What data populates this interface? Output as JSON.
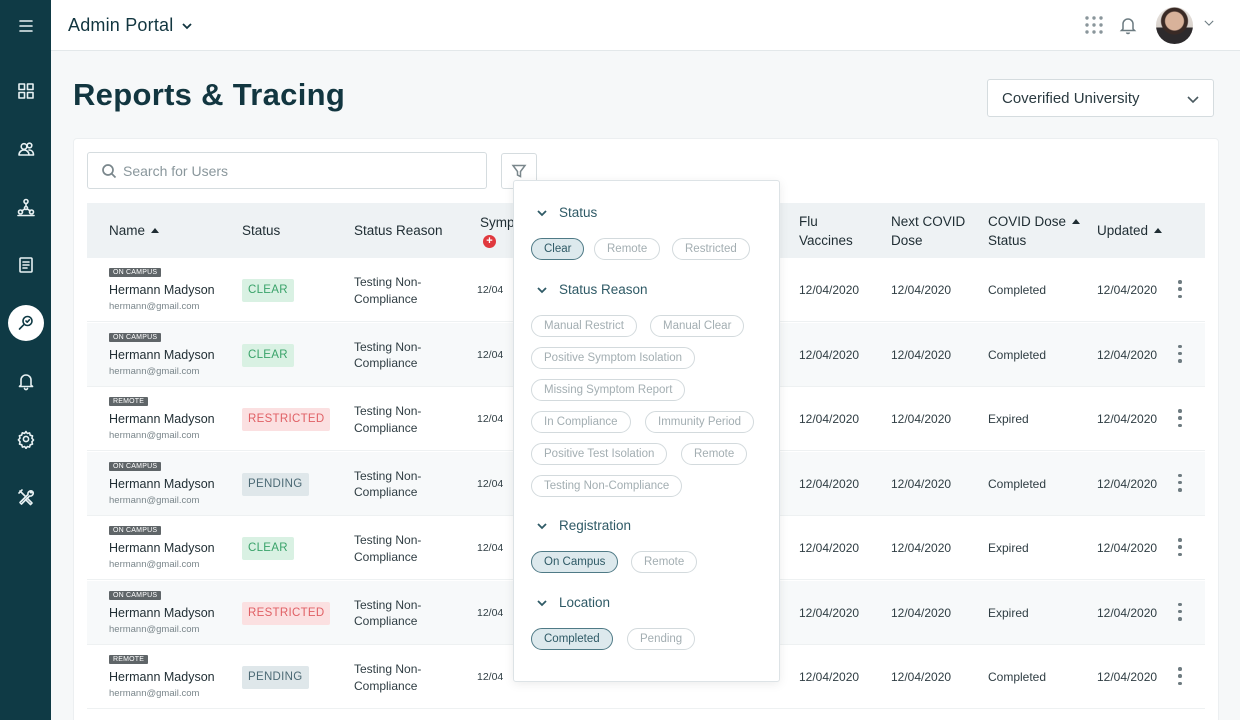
{
  "topbar": {
    "app_title": "Admin Portal"
  },
  "sidebar": {
    "items": [
      {
        "icon": "menu-icon"
      },
      {
        "icon": "dashboard-icon"
      },
      {
        "icon": "users-icon"
      },
      {
        "icon": "network-icon"
      },
      {
        "icon": "reports-icon"
      },
      {
        "icon": "tracing-icon",
        "active": true
      },
      {
        "icon": "bell-icon"
      },
      {
        "icon": "gear-icon"
      },
      {
        "icon": "tools-icon"
      }
    ]
  },
  "page": {
    "title": "Reports & Tracing",
    "org_select": "Coverified University"
  },
  "search": {
    "placeholder": "Search for Users"
  },
  "table": {
    "headers": {
      "name": "Name",
      "status": "Status",
      "status_reason": "Status Reason",
      "symptoms": "Symp",
      "flu": [
        "Flu",
        "Vaccines"
      ],
      "next_covid": [
        "Next COVID",
        "Dose"
      ],
      "covid_status": [
        "COVID Dose",
        "Status"
      ],
      "updated": "Updated"
    },
    "rows": [
      {
        "reg": "ON CAMPUS",
        "name": "Hermann Madyson",
        "email": "hermann@gmail.com",
        "status": "CLEAR",
        "kind": "clear",
        "reason": "Testing Non-Compliance",
        "sym": "12/04",
        "flu": "12/04/2020",
        "next": "12/04/2020",
        "dose_status": "Completed",
        "updated": "12/04/2020"
      },
      {
        "reg": "ON CAMPUS",
        "name": "Hermann Madyson",
        "email": "hermann@gmail.com",
        "status": "CLEAR",
        "kind": "clear",
        "reason": "Testing Non-Compliance",
        "sym": "12/04",
        "flu": "12/04/2020",
        "next": "12/04/2020",
        "dose_status": "Completed",
        "updated": "12/04/2020"
      },
      {
        "reg": "REMOTE",
        "name": "Hermann Madyson",
        "email": "hermann@gmail.com",
        "status": "RESTRICTED",
        "kind": "restricted",
        "reason": "Testing Non-Compliance",
        "sym": "12/04",
        "flu": "12/04/2020",
        "next": "12/04/2020",
        "dose_status": "Expired",
        "updated": "12/04/2020"
      },
      {
        "reg": "ON CAMPUS",
        "name": "Hermann Madyson",
        "email": "hermann@gmail.com",
        "status": "PENDING",
        "kind": "pending",
        "reason": "Testing Non-Compliance",
        "sym": "12/04",
        "flu": "12/04/2020",
        "next": "12/04/2020",
        "dose_status": "Completed",
        "updated": "12/04/2020"
      },
      {
        "reg": "ON CAMPUS",
        "name": "Hermann Madyson",
        "email": "hermann@gmail.com",
        "status": "CLEAR",
        "kind": "clear",
        "reason": "Testing Non-Compliance",
        "sym": "12/04",
        "flu": "12/04/2020",
        "next": "12/04/2020",
        "dose_status": "Expired",
        "updated": "12/04/2020"
      },
      {
        "reg": "ON CAMPUS",
        "name": "Hermann Madyson",
        "email": "hermann@gmail.com",
        "status": "RESTRICTED",
        "kind": "restricted",
        "reason": "Testing Non-Compliance",
        "sym": "12/04",
        "flu": "12/04/2020",
        "next": "12/04/2020",
        "dose_status": "Expired",
        "updated": "12/04/2020"
      },
      {
        "reg": "REMOTE",
        "name": "Hermann Madyson",
        "email": "hermann@gmail.com",
        "status": "PENDING",
        "kind": "pending",
        "reason": "Testing Non-Compliance",
        "sym": "12/04",
        "flu": "12/04/2020",
        "next": "12/04/2020",
        "dose_status": "Completed",
        "updated": "12/04/2020"
      }
    ]
  },
  "filter": {
    "status": {
      "title": "Status",
      "chips": [
        {
          "label": "Clear",
          "selected": true
        },
        {
          "label": "Remote",
          "selected": false
        },
        {
          "label": "Restricted",
          "selected": false
        }
      ]
    },
    "status_reason": {
      "title": "Status Reason",
      "chips": [
        {
          "label": "Manual Restrict",
          "selected": false
        },
        {
          "label": "Manual Clear",
          "selected": false
        },
        {
          "label": "Positive Symptom Isolation",
          "selected": false
        },
        {
          "label": "Missing Symptom Report",
          "selected": false
        },
        {
          "label": "In Compliance",
          "selected": false
        },
        {
          "label": "Immunity Period",
          "selected": false
        },
        {
          "label": "Positive Test Isolation",
          "selected": false
        },
        {
          "label": "Remote",
          "selected": false
        },
        {
          "label": "Testing Non-Compliance",
          "selected": false
        }
      ]
    },
    "registration": {
      "title": "Registration",
      "chips": [
        {
          "label": "On Campus",
          "selected": true
        },
        {
          "label": "Remote",
          "selected": false
        }
      ]
    },
    "location": {
      "title": "Location",
      "chips": [
        {
          "label": "Completed",
          "selected": true
        },
        {
          "label": "Pending",
          "selected": false
        }
      ]
    }
  },
  "colors": {
    "sidebar": "#0f3a45",
    "accent": "#2f5a66",
    "clear": "#3aa36a",
    "restricted": "#e06065",
    "pending": "#4c6a75"
  }
}
